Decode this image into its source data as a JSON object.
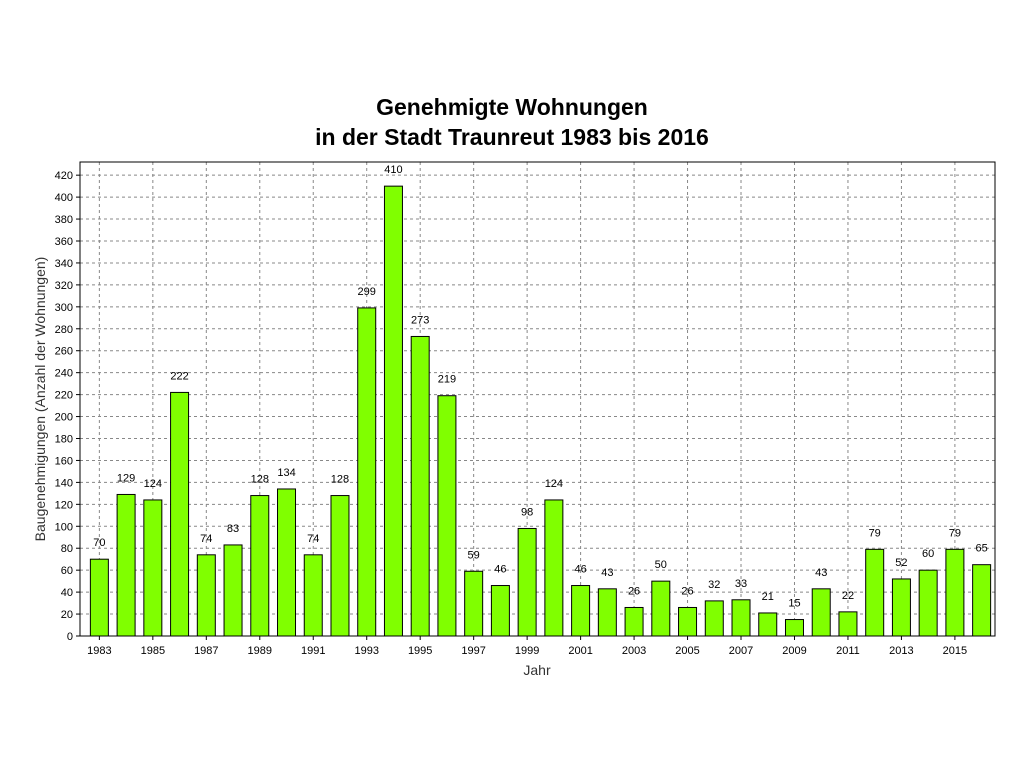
{
  "chart_data": {
    "type": "bar",
    "title_lines": [
      "Genehmigte Wohnungen",
      "in der Stadt Traunreut 1983 bis 2016"
    ],
    "xlabel": "Jahr",
    "ylabel": "Baugenehmigungen (Anzahl der Wohnungen)",
    "categories": [
      "1983",
      "1984",
      "1985",
      "1986",
      "1987",
      "1988",
      "1989",
      "1990",
      "1991",
      "1992",
      "1993",
      "1994",
      "1995",
      "1996",
      "1997",
      "1998",
      "1999",
      "2000",
      "2001",
      "2002",
      "2003",
      "2004",
      "2005",
      "2006",
      "2007",
      "2008",
      "2009",
      "2010",
      "2011",
      "2012",
      "2013",
      "2014",
      "2015",
      "2016"
    ],
    "x_tick_labels": [
      "1983",
      "1985",
      "1987",
      "1989",
      "1991",
      "1993",
      "1995",
      "1997",
      "1999",
      "2001",
      "2003",
      "2005",
      "2007",
      "2009",
      "2011",
      "2013",
      "2015"
    ],
    "values": [
      70,
      129,
      124,
      222,
      74,
      83,
      128,
      134,
      74,
      128,
      299,
      410,
      273,
      219,
      59,
      46,
      98,
      124,
      46,
      43,
      26,
      50,
      26,
      32,
      33,
      21,
      15,
      43,
      22,
      79,
      52,
      60,
      79,
      65
    ],
    "ylim": [
      0,
      432
    ],
    "y_ticks": [
      0,
      20,
      40,
      60,
      80,
      100,
      120,
      140,
      160,
      180,
      200,
      220,
      240,
      260,
      280,
      300,
      320,
      340,
      360,
      380,
      400,
      420
    ],
    "grid": true,
    "bar_color": "#80ff00"
  }
}
